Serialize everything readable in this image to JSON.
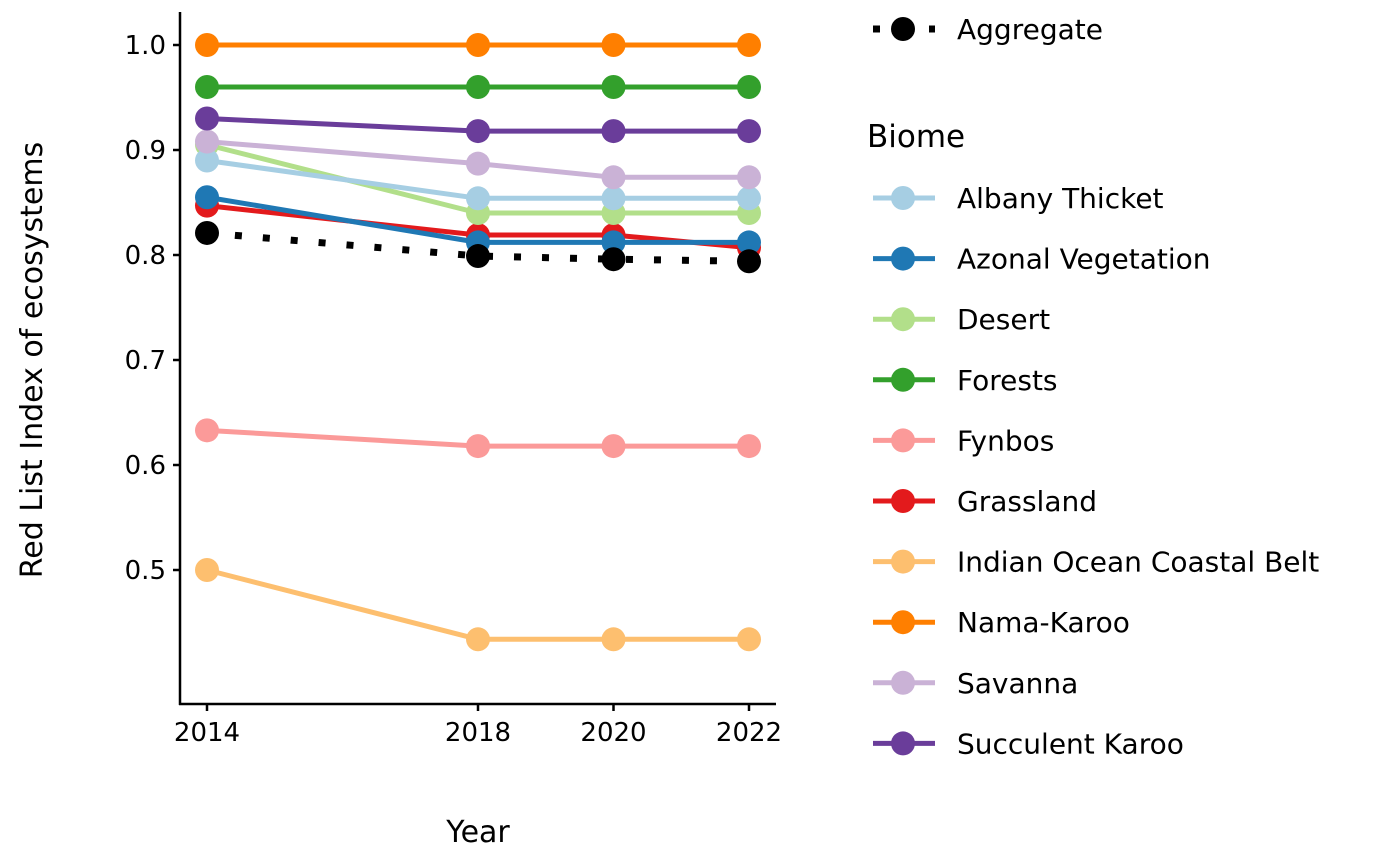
{
  "chart_data": {
    "type": "line",
    "title": "",
    "xlabel": "Year",
    "ylabel": "Red List Index of ecosystems",
    "x": [
      2014,
      2018,
      2020,
      2022
    ],
    "x_ticks": [
      "2014",
      "2018",
      "2020",
      "2022"
    ],
    "y_ticks": [
      "0.5",
      "0.6",
      "0.7",
      "0.8",
      "0.9",
      "1.0"
    ],
    "y_tick_values": [
      0.5,
      0.6,
      0.7,
      0.8,
      0.9,
      1.0
    ],
    "ylim": [
      0.373,
      1.03
    ],
    "xlim": [
      2013.5,
      2022.4
    ],
    "grid": false,
    "legend_position": "right",
    "legend_title": "Biome",
    "aggregate": {
      "name": "Aggregate",
      "color": "#000000",
      "line_style": "dotted",
      "values": [
        0.821,
        0.799,
        0.796,
        0.794
      ]
    },
    "series": [
      {
        "name": "Albany Thicket",
        "color": "#A6CEE3",
        "values": [
          0.89,
          0.854,
          0.854,
          0.854
        ]
      },
      {
        "name": "Azonal Vegetation",
        "color": "#1F78B4",
        "values": [
          0.855,
          0.812,
          0.812,
          0.812
        ]
      },
      {
        "name": "Desert",
        "color": "#B2DF8A",
        "values": [
          0.905,
          0.84,
          0.84,
          0.84
        ]
      },
      {
        "name": "Forests",
        "color": "#33A02C",
        "values": [
          0.96,
          0.96,
          0.96,
          0.96
        ]
      },
      {
        "name": "Fynbos",
        "color": "#FB9A99",
        "values": [
          0.633,
          0.618,
          0.618,
          0.618
        ]
      },
      {
        "name": "Grassland",
        "color": "#E31A1C",
        "values": [
          0.847,
          0.819,
          0.819,
          0.807
        ]
      },
      {
        "name": "Indian Ocean Coastal Belt",
        "color": "#FDBF6F",
        "values": [
          0.5,
          0.434,
          0.434,
          0.434
        ]
      },
      {
        "name": "Nama-Karoo",
        "color": "#FF7F00",
        "values": [
          1.0,
          1.0,
          1.0,
          1.0
        ]
      },
      {
        "name": "Savanna",
        "color": "#CAB2D6",
        "values": [
          0.908,
          0.887,
          0.874,
          0.874
        ]
      },
      {
        "name": "Succulent Karoo",
        "color": "#6A3D9A",
        "values": [
          0.93,
          0.918,
          0.918,
          0.918
        ]
      }
    ],
    "draw_order": [
      "Indian Ocean Coastal Belt",
      "Fynbos",
      "Grassland",
      "Azonal Vegetation",
      "Desert",
      "Albany Thicket",
      "Savanna",
      "Succulent Karoo",
      "Forests",
      "Nama-Karoo"
    ]
  }
}
